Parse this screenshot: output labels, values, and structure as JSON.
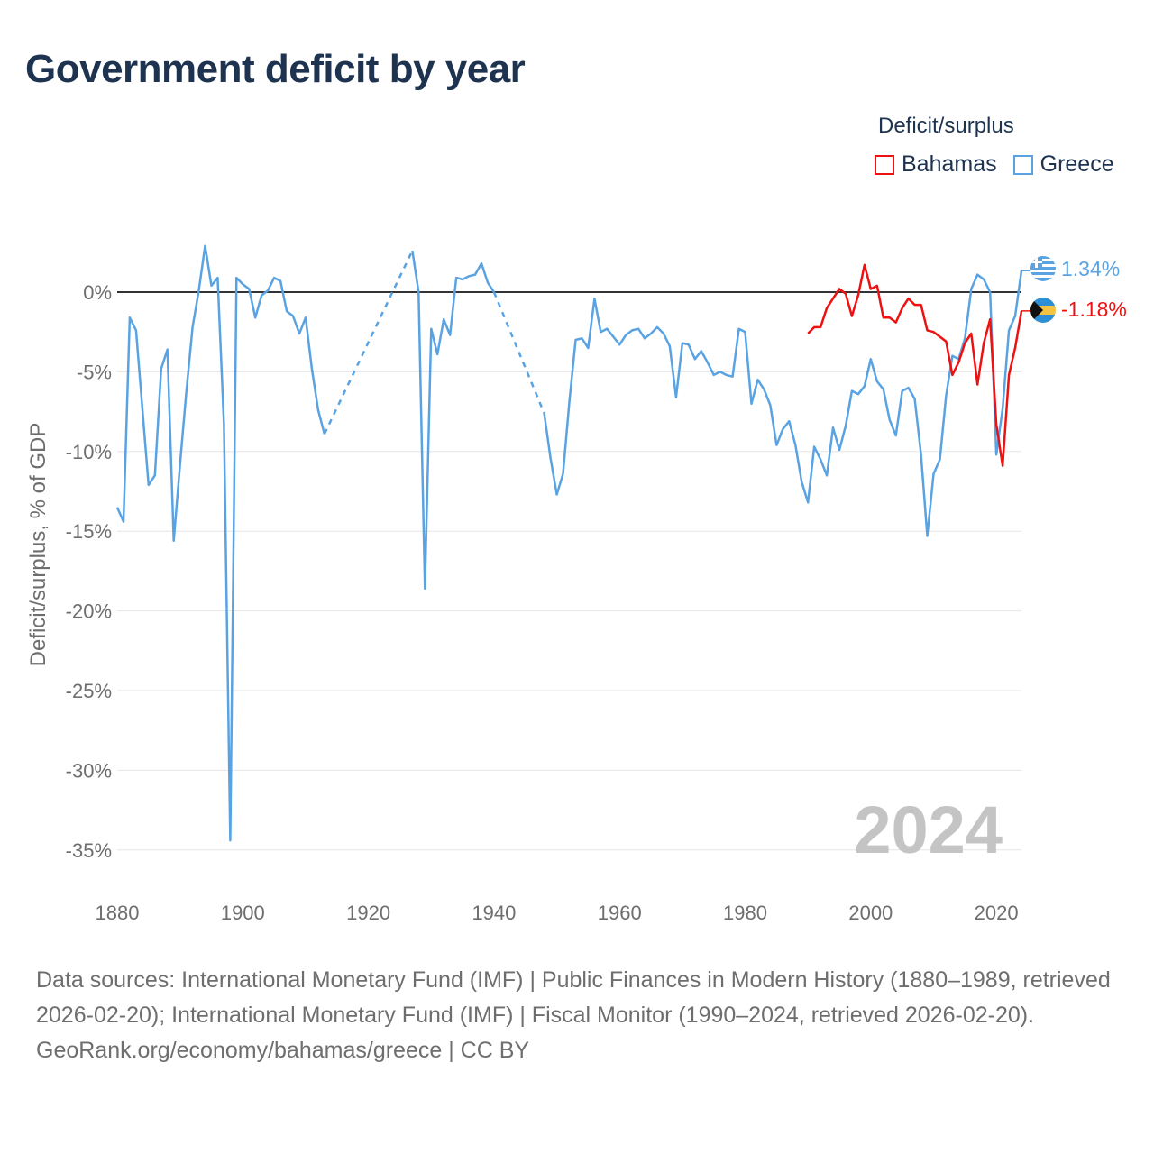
{
  "title": "Government deficit by year",
  "legend": {
    "title": "Deficit/surplus",
    "items": [
      {
        "name": "Bahamas",
        "color": "#ee1111"
      },
      {
        "name": "Greece",
        "color": "#5aa3e3"
      }
    ]
  },
  "year_watermark": "2024",
  "footer": {
    "sources": "Data sources: International Monetary Fund (IMF) | Public Finances in Modern History (1880–1989, retrieved 2026-02-20); International Monetary Fund (IMF) | Fiscal Monitor (1990–2024, retrieved 2026-02-20).",
    "credit": "GeoRank.org/economy/bahamas/greece | CC BY"
  },
  "chart_data": {
    "type": "line",
    "title": "Government deficit by year",
    "xlabel": "",
    "ylabel": "Deficit/surplus, % of GDP",
    "xlim": [
      1880,
      2024
    ],
    "ylim": [
      -38,
      4
    ],
    "x_ticks": [
      1880,
      1900,
      1920,
      1940,
      1960,
      1980,
      2000,
      2020
    ],
    "y_ticks": [
      0,
      -5,
      -10,
      -15,
      -20,
      -25,
      -30,
      -35
    ],
    "y_tick_labels": [
      "0%",
      "-5%",
      "-10%",
      "-15%",
      "-20%",
      "-25%",
      "-30%",
      "-35%"
    ],
    "zero_line": true,
    "series": [
      {
        "name": "Greece",
        "color": "#5aa3e3",
        "end_label": "1.34%",
        "gaps_dashed": true,
        "points": [
          [
            1880,
            -13.5
          ],
          [
            1881,
            -14.4
          ],
          [
            1882,
            -1.6
          ],
          [
            1883,
            -2.4
          ],
          [
            1884,
            -7.3
          ],
          [
            1885,
            -12.1
          ],
          [
            1886,
            -11.5
          ],
          [
            1887,
            -4.8
          ],
          [
            1888,
            -3.6
          ],
          [
            1889,
            -15.6
          ],
          [
            1890,
            -10.8
          ],
          [
            1891,
            -6.3
          ],
          [
            1892,
            -2.2
          ],
          [
            1893,
            0.1
          ],
          [
            1894,
            2.9
          ],
          [
            1895,
            0.4
          ],
          [
            1896,
            0.9
          ],
          [
            1897,
            -8.3
          ],
          [
            1898,
            -34.4
          ],
          [
            1899,
            0.9
          ],
          [
            1900,
            0.5
          ],
          [
            1901,
            0.2
          ],
          [
            1902,
            -1.6
          ],
          [
            1903,
            -0.2
          ],
          [
            1904,
            0.1
          ],
          [
            1905,
            0.9
          ],
          [
            1906,
            0.7
          ],
          [
            1907,
            -1.2
          ],
          [
            1908,
            -1.5
          ],
          [
            1909,
            -2.6
          ],
          [
            1910,
            -1.6
          ],
          [
            1911,
            -4.8
          ],
          [
            1912,
            -7.4
          ],
          [
            1913,
            -8.9
          ],
          [
            1927,
            2.6
          ],
          [
            1928,
            0.0
          ],
          [
            1929,
            -18.6
          ],
          [
            1930,
            -2.3
          ],
          [
            1931,
            -3.9
          ],
          [
            1932,
            -1.7
          ],
          [
            1933,
            -2.7
          ],
          [
            1934,
            0.9
          ],
          [
            1935,
            0.8
          ],
          [
            1936,
            1.0
          ],
          [
            1937,
            1.1
          ],
          [
            1938,
            1.8
          ],
          [
            1939,
            0.6
          ],
          [
            1940,
            0.0
          ],
          [
            1948,
            -7.6
          ],
          [
            1949,
            -10.4
          ],
          [
            1950,
            -12.7
          ],
          [
            1951,
            -11.4
          ],
          [
            1952,
            -6.9
          ],
          [
            1953,
            -3.0
          ],
          [
            1954,
            -2.9
          ],
          [
            1955,
            -3.5
          ],
          [
            1956,
            -0.4
          ],
          [
            1957,
            -2.5
          ],
          [
            1958,
            -2.3
          ],
          [
            1959,
            -2.8
          ],
          [
            1960,
            -3.3
          ],
          [
            1961,
            -2.7
          ],
          [
            1962,
            -2.4
          ],
          [
            1963,
            -2.3
          ],
          [
            1964,
            -2.9
          ],
          [
            1965,
            -2.6
          ],
          [
            1966,
            -2.2
          ],
          [
            1967,
            -2.6
          ],
          [
            1968,
            -3.4
          ],
          [
            1969,
            -6.6
          ],
          [
            1970,
            -3.2
          ],
          [
            1971,
            -3.3
          ],
          [
            1972,
            -4.2
          ],
          [
            1973,
            -3.7
          ],
          [
            1974,
            -4.4
          ],
          [
            1975,
            -5.2
          ],
          [
            1976,
            -5.0
          ],
          [
            1977,
            -5.2
          ],
          [
            1978,
            -5.3
          ],
          [
            1979,
            -2.3
          ],
          [
            1980,
            -2.5
          ],
          [
            1981,
            -7.0
          ],
          [
            1982,
            -5.5
          ],
          [
            1983,
            -6.1
          ],
          [
            1984,
            -7.1
          ],
          [
            1985,
            -9.6
          ],
          [
            1986,
            -8.6
          ],
          [
            1987,
            -8.1
          ],
          [
            1988,
            -9.6
          ],
          [
            1989,
            -11.9
          ],
          [
            1990,
            -13.2
          ],
          [
            1991,
            -9.7
          ],
          [
            1992,
            -10.5
          ],
          [
            1993,
            -11.5
          ],
          [
            1994,
            -8.5
          ],
          [
            1995,
            -9.9
          ],
          [
            1996,
            -8.4
          ],
          [
            1997,
            -6.2
          ],
          [
            1998,
            -6.4
          ],
          [
            1999,
            -5.9
          ],
          [
            2000,
            -4.2
          ],
          [
            2001,
            -5.6
          ],
          [
            2002,
            -6.1
          ],
          [
            2003,
            -8.0
          ],
          [
            2004,
            -9.0
          ],
          [
            2005,
            -6.2
          ],
          [
            2006,
            -6.0
          ],
          [
            2007,
            -6.7
          ],
          [
            2008,
            -10.2
          ],
          [
            2009,
            -15.3
          ],
          [
            2010,
            -11.4
          ],
          [
            2011,
            -10.5
          ],
          [
            2012,
            -6.5
          ],
          [
            2013,
            -4.0
          ],
          [
            2014,
            -4.2
          ],
          [
            2015,
            -2.9
          ],
          [
            2016,
            0.2
          ],
          [
            2017,
            1.1
          ],
          [
            2018,
            0.8
          ],
          [
            2019,
            0.0
          ],
          [
            2020,
            -10.2
          ],
          [
            2021,
            -7.3
          ],
          [
            2022,
            -2.4
          ],
          [
            2023,
            -1.5
          ],
          [
            2024,
            1.34
          ]
        ]
      },
      {
        "name": "Bahamas",
        "color": "#ee1111",
        "end_label": "-1.18%",
        "gaps_dashed": false,
        "points": [
          [
            1990,
            -2.6
          ],
          [
            1991,
            -2.2
          ],
          [
            1992,
            -2.2
          ],
          [
            1993,
            -1.0
          ],
          [
            1994,
            -0.4
          ],
          [
            1995,
            0.2
          ],
          [
            1996,
            -0.1
          ],
          [
            1997,
            -1.5
          ],
          [
            1998,
            -0.2
          ],
          [
            1999,
            1.7
          ],
          [
            2000,
            0.2
          ],
          [
            2001,
            0.4
          ],
          [
            2002,
            -1.6
          ],
          [
            2003,
            -1.6
          ],
          [
            2004,
            -1.9
          ],
          [
            2005,
            -1.0
          ],
          [
            2006,
            -0.4
          ],
          [
            2007,
            -0.8
          ],
          [
            2008,
            -0.8
          ],
          [
            2009,
            -2.4
          ],
          [
            2010,
            -2.5
          ],
          [
            2011,
            -2.8
          ],
          [
            2012,
            -3.1
          ],
          [
            2013,
            -5.2
          ],
          [
            2014,
            -4.4
          ],
          [
            2015,
            -3.2
          ],
          [
            2016,
            -2.6
          ],
          [
            2017,
            -5.8
          ],
          [
            2018,
            -3.2
          ],
          [
            2019,
            -1.7
          ],
          [
            2020,
            -8.3
          ],
          [
            2021,
            -10.9
          ],
          [
            2022,
            -5.2
          ],
          [
            2023,
            -3.5
          ],
          [
            2024,
            -1.18
          ]
        ]
      }
    ]
  }
}
